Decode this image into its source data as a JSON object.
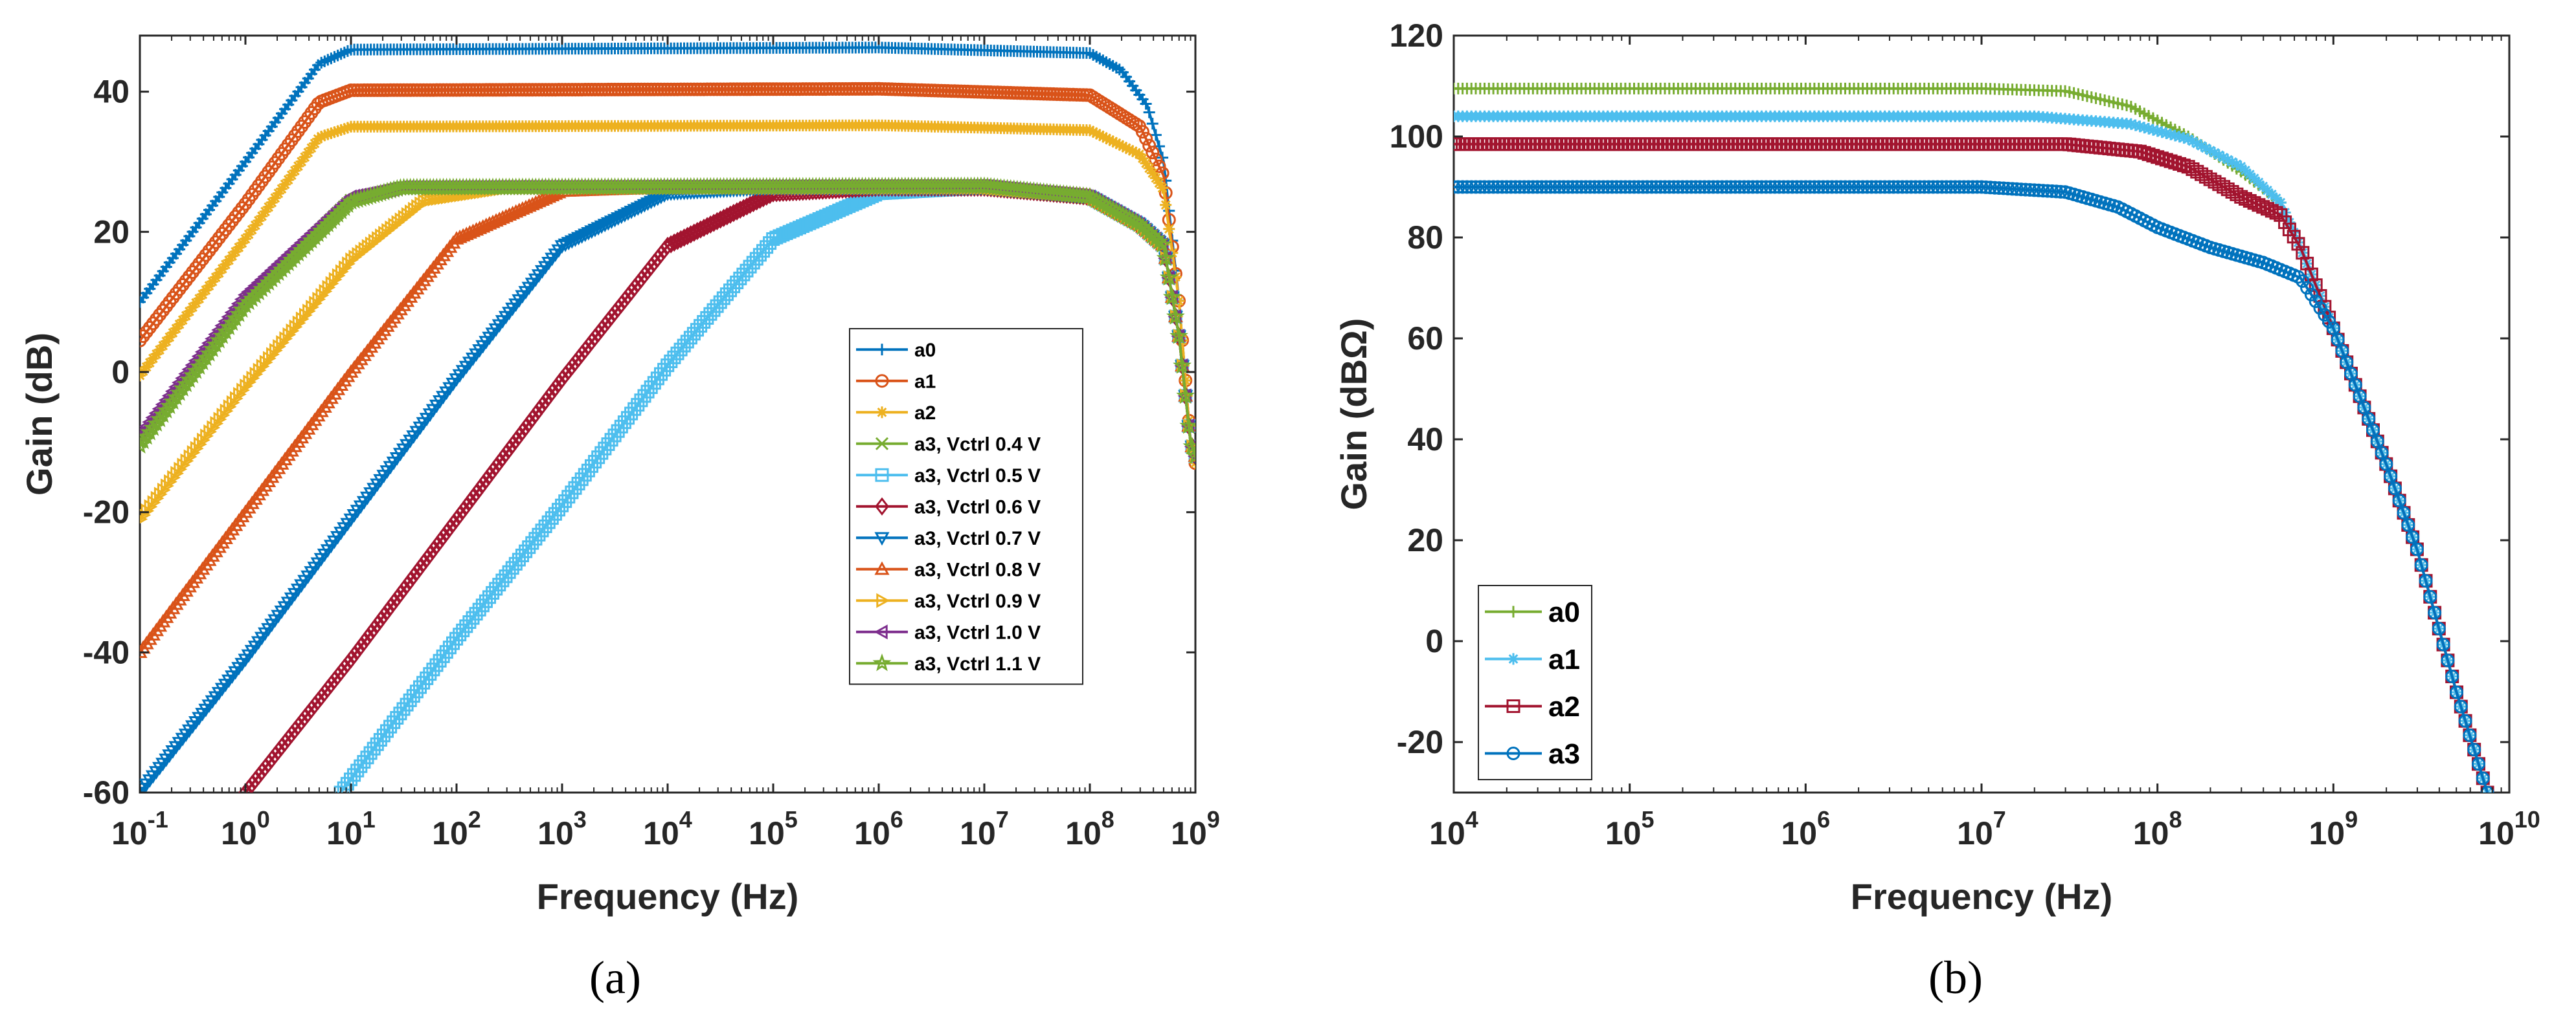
{
  "chart_data": [
    {
      "id": "a",
      "type": "line",
      "caption": "(a)",
      "xscale": "log",
      "xlabel": "Frequency (Hz)",
      "ylabel": "Gain (dB)",
      "xlim": [
        0.1,
        1000000000
      ],
      "ylim": [
        -60,
        48
      ],
      "xticks": [
        {
          "base": "10",
          "exp": "-1"
        },
        {
          "base": "10",
          "exp": "0"
        },
        {
          "base": "10",
          "exp": "1"
        },
        {
          "base": "10",
          "exp": "2"
        },
        {
          "base": "10",
          "exp": "3"
        },
        {
          "base": "10",
          "exp": "4"
        },
        {
          "base": "10",
          "exp": "5"
        },
        {
          "base": "10",
          "exp": "6"
        },
        {
          "base": "10",
          "exp": "7"
        },
        {
          "base": "10",
          "exp": "8"
        },
        {
          "base": "10",
          "exp": "9"
        }
      ],
      "yticks": [
        "-60",
        "-40",
        "-20",
        "0",
        "20",
        "40"
      ],
      "legend_position": "center-right",
      "series": [
        {
          "name": "a0",
          "color": "#0072BD",
          "marker": "+",
          "gain": 46.3,
          "fL": 1.2,
          "pts": [
            [
              0.1,
              10
            ],
            [
              1,
              30
            ],
            [
              5,
              44
            ],
            [
              10,
              46
            ],
            [
              1000000.0,
              46.3
            ],
            [
              100000000.0,
              45.5
            ],
            [
              200000000.0,
              43
            ],
            [
              350000000.0,
              38
            ],
            [
              500000000.0,
              30
            ],
            [
              700000000.0,
              10
            ],
            [
              900000000.0,
              -10
            ],
            [
              1000000000.0,
              -13
            ]
          ]
        },
        {
          "name": "a1",
          "color": "#D95319",
          "marker": "o",
          "gain": 40.4,
          "fL": 1.2,
          "pts": [
            [
              0.1,
              4.5
            ],
            [
              1,
              24
            ],
            [
              5,
              38.5
            ],
            [
              10,
              40.2
            ],
            [
              1000000.0,
              40.4
            ],
            [
              100000000.0,
              39.5
            ],
            [
              300000000.0,
              35
            ],
            [
              500000000.0,
              28
            ],
            [
              700000000.0,
              10
            ],
            [
              900000000.0,
              -10
            ],
            [
              1000000000.0,
              -13
            ]
          ]
        },
        {
          "name": "a2",
          "color": "#EDB120",
          "marker": "*",
          "gain": 35.2,
          "fL": 1.2,
          "pts": [
            [
              0.1,
              -0.5
            ],
            [
              1,
              19
            ],
            [
              5,
              33.5
            ],
            [
              10,
              35
            ],
            [
              1000000.0,
              35.2
            ],
            [
              100000000.0,
              34.5
            ],
            [
              300000000.0,
              31
            ],
            [
              500000000.0,
              26
            ],
            [
              700000000.0,
              10
            ],
            [
              900000000.0,
              -10
            ],
            [
              1000000000.0,
              -13
            ]
          ]
        },
        {
          "name": "a3, Vctrl 0.4 V",
          "color": "#77AC30",
          "marker": "x",
          "gain": 26.3,
          "fL": 2.6,
          "pts": [
            [
              0.1,
              -10
            ],
            [
              1,
              10
            ],
            [
              10,
              24.5
            ],
            [
              30,
              26.3
            ],
            [
              10000000.0,
              26.5
            ],
            [
              100000000.0,
              25
            ],
            [
              300000000.0,
              21
            ],
            [
              500000000.0,
              18
            ],
            [
              700000000.0,
              5
            ],
            [
              900000000.0,
              -10
            ],
            [
              1000000000.0,
              -12
            ]
          ]
        },
        {
          "name": "a3, Vctrl 0.5 V",
          "color": "#4DBEEE",
          "marker": "s",
          "gain": 26.3,
          "fL": 50000,
          "pts": [
            [
              8,
              -60
            ],
            [
              100,
              -38
            ],
            [
              1000,
              -19
            ],
            [
              10000.0,
              1
            ],
            [
              100000.0,
              19
            ],
            [
              1000000.0,
              25.5
            ],
            [
              10000000.0,
              26.3
            ],
            [
              100000000.0,
              25
            ],
            [
              300000000.0,
              21
            ],
            [
              500000000.0,
              18
            ],
            [
              700000000.0,
              5
            ],
            [
              900000000.0,
              -10
            ],
            [
              1000000000.0,
              -12
            ]
          ]
        },
        {
          "name": "a3, Vctrl 0.6 V",
          "color": "#A2142F",
          "marker": "d",
          "gain": 26.3,
          "fL": 5000,
          "pts": [
            [
              1,
              -60
            ],
            [
              10,
              -41
            ],
            [
              100,
              -21
            ],
            [
              1000,
              -1
            ],
            [
              10000.0,
              18
            ],
            [
              100000.0,
              25.5
            ],
            [
              1000000.0,
              26.3
            ],
            [
              10000000.0,
              26.3
            ],
            [
              100000000.0,
              25
            ],
            [
              300000000.0,
              21
            ],
            [
              500000000.0,
              18
            ],
            [
              700000000.0,
              5
            ],
            [
              900000000.0,
              -10
            ],
            [
              1000000000.0,
              -12
            ]
          ]
        },
        {
          "name": "a3, Vctrl 0.7 V",
          "color": "#0072BD",
          "marker": "v",
          "gain": 26.3,
          "fL": 500,
          "pts": [
            [
              0.1,
              -60
            ],
            [
              1,
              -41
            ],
            [
              10,
              -21
            ],
            [
              100,
              -1
            ],
            [
              1000,
              18
            ],
            [
              10000.0,
              25.5
            ],
            [
              100000.0,
              26.3
            ],
            [
              10000000.0,
              26.3
            ],
            [
              100000000.0,
              25
            ],
            [
              300000000.0,
              21
            ],
            [
              500000000.0,
              18
            ],
            [
              700000000.0,
              5
            ],
            [
              900000000.0,
              -10
            ],
            [
              1000000000.0,
              -12
            ]
          ]
        },
        {
          "name": "a3, Vctrl 0.8 V",
          "color": "#D95319",
          "marker": "^",
          "gain": 26.3,
          "fL": 50,
          "pts": [
            [
              0.1,
              -40
            ],
            [
              1,
              -20
            ],
            [
              10,
              0
            ],
            [
              100,
              19
            ],
            [
              1000,
              25.8
            ],
            [
              10000.0,
              26.3
            ],
            [
              10000000.0,
              26.3
            ],
            [
              100000000.0,
              25
            ],
            [
              300000000.0,
              21
            ],
            [
              500000000.0,
              18
            ],
            [
              700000000.0,
              5
            ],
            [
              900000000.0,
              -10
            ],
            [
              1000000000.0,
              -12
            ]
          ]
        },
        {
          "name": "a3, Vctrl 0.9 V",
          "color": "#EDB120",
          "marker": ">",
          "gain": 26.3,
          "fL": 10,
          "pts": [
            [
              0.1,
              -21
            ],
            [
              1,
              -2
            ],
            [
              10,
              16
            ],
            [
              50,
              24.5
            ],
            [
              300,
              26.3
            ],
            [
              10000000.0,
              26.3
            ],
            [
              100000000.0,
              25
            ],
            [
              300000000.0,
              21
            ],
            [
              500000000.0,
              18
            ],
            [
              700000000.0,
              5
            ],
            [
              900000000.0,
              -10
            ],
            [
              1000000000.0,
              -12
            ]
          ]
        },
        {
          "name": "a3, Vctrl 1.0 V",
          "color": "#7E2F8E",
          "marker": "<",
          "gain": 26.3,
          "fL": 2.6,
          "pts": [
            [
              0.1,
              -9
            ],
            [
              1,
              11
            ],
            [
              10,
              25
            ],
            [
              30,
              26.3
            ],
            [
              10000000.0,
              26.5
            ],
            [
              100000000.0,
              25
            ],
            [
              300000000.0,
              21
            ],
            [
              500000000.0,
              18
            ],
            [
              700000000.0,
              5
            ],
            [
              900000000.0,
              -10
            ],
            [
              1000000000.0,
              -12
            ]
          ]
        },
        {
          "name": "a3, Vctrl 1.1 V",
          "color": "#77AC30",
          "marker": "p",
          "gain": 26.3,
          "fL": 2.6,
          "pts": [
            [
              0.1,
              -10.5
            ],
            [
              1,
              9.5
            ],
            [
              10,
              24.3
            ],
            [
              30,
              26.3
            ],
            [
              10000000.0,
              26.5
            ],
            [
              100000000.0,
              25
            ],
            [
              300000000.0,
              21
            ],
            [
              500000000.0,
              18
            ],
            [
              700000000.0,
              5
            ],
            [
              900000000.0,
              -10
            ],
            [
              1000000000.0,
              -12
            ]
          ]
        }
      ]
    },
    {
      "id": "b",
      "type": "line",
      "caption": "(b)",
      "xscale": "log",
      "xlabel": "Frequency (Hz)",
      "ylabel": "Gain (dBΩ)",
      "xlim": [
        10000,
        10000000000
      ],
      "ylim": [
        -30,
        120
      ],
      "xticks": [
        {
          "base": "10",
          "exp": "4"
        },
        {
          "base": "10",
          "exp": "5"
        },
        {
          "base": "10",
          "exp": "6"
        },
        {
          "base": "10",
          "exp": "7"
        },
        {
          "base": "10",
          "exp": "8"
        },
        {
          "base": "10",
          "exp": "9"
        },
        {
          "base": "10",
          "exp": "10"
        }
      ],
      "yticks": [
        "-20",
        "0",
        "20",
        "40",
        "60",
        "80",
        "100",
        "120"
      ],
      "legend_position": "bottom-left",
      "series": [
        {
          "name": "a0",
          "color": "#77AC30",
          "marker": "+",
          "pts": [
            [
              10000.0,
              109.5
            ],
            [
              10000000.0,
              109.5
            ],
            [
              30000000.0,
              109
            ],
            [
              70000000.0,
              106
            ],
            [
              150000000.0,
              100
            ],
            [
              300000000.0,
              93
            ],
            [
              500000000.0,
              87
            ],
            [
              650000000.0,
              78
            ],
            [
              1000000000.0,
              62
            ],
            [
              2000000000.0,
              35
            ],
            [
              3000000000.0,
              18
            ],
            [
              5000000000.0,
              -10
            ],
            [
              7500000000.0,
              -30
            ]
          ]
        },
        {
          "name": "a1",
          "color": "#4DBEEE",
          "marker": "*",
          "pts": [
            [
              10000.0,
              104
            ],
            [
              20000000.0,
              104
            ],
            [
              70000000.0,
              102.5
            ],
            [
              150000000.0,
              99.5
            ],
            [
              300000000.0,
              94
            ],
            [
              500000000.0,
              87
            ],
            [
              650000000.0,
              78
            ],
            [
              1000000000.0,
              62
            ],
            [
              2000000000.0,
              35
            ],
            [
              3000000000.0,
              18
            ],
            [
              5000000000.0,
              -10
            ],
            [
              7500000000.0,
              -30
            ]
          ]
        },
        {
          "name": "a2",
          "color": "#A2142F",
          "marker": "s",
          "pts": [
            [
              10000.0,
              98.5
            ],
            [
              30000000.0,
              98.5
            ],
            [
              80000000.0,
              97
            ],
            [
              150000000.0,
              94
            ],
            [
              300000000.0,
              88
            ],
            [
              500000000.0,
              84.5
            ],
            [
              650000000.0,
              78
            ],
            [
              1000000000.0,
              62
            ],
            [
              2000000000.0,
              35
            ],
            [
              3000000000.0,
              18
            ],
            [
              5000000000.0,
              -10
            ],
            [
              7500000000.0,
              -30
            ]
          ]
        },
        {
          "name": "a3",
          "color": "#0072BD",
          "marker": "o",
          "pts": [
            [
              10000.0,
              90
            ],
            [
              10000000.0,
              90
            ],
            [
              30000000.0,
              89
            ],
            [
              60000000.0,
              86
            ],
            [
              100000000.0,
              82
            ],
            [
              200000000.0,
              78
            ],
            [
              400000000.0,
              75
            ],
            [
              650000000.0,
              72
            ],
            [
              1000000000.0,
              62
            ],
            [
              2000000000.0,
              35
            ],
            [
              3000000000.0,
              18
            ],
            [
              5000000000.0,
              -10
            ],
            [
              7500000000.0,
              -30
            ]
          ]
        }
      ]
    }
  ]
}
